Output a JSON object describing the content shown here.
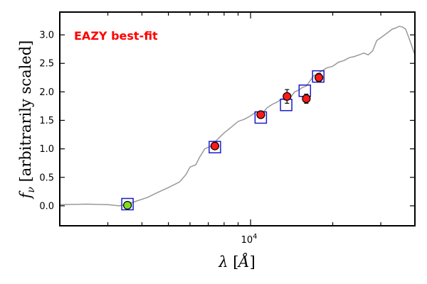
{
  "chart_data": {
    "type": "scatter",
    "annotation": "EAZY best-fit",
    "colors": {
      "annotation": "#ff0000",
      "model": "#999999",
      "model_box": "#1a1acc",
      "detected": "#ff1a1a",
      "upper_point": "#7fdf1f"
    },
    "xlabel": "λ [Å]",
    "ylabel": "fν [arbitrarily scaled]",
    "xscale": "log",
    "xlim": [
      2000,
      40000
    ],
    "ylim": [
      -0.35,
      3.4
    ],
    "yticks": [
      {
        "v": 0.0,
        "label": "0.0"
      },
      {
        "v": 0.5,
        "label": "0.5"
      },
      {
        "v": 1.0,
        "label": "1.0"
      },
      {
        "v": 1.5,
        "label": "1.5"
      },
      {
        "v": 2.0,
        "label": "2.0"
      },
      {
        "v": 2.5,
        "label": "2.5"
      },
      {
        "v": 3.0,
        "label": "3.0"
      }
    ],
    "xtick_label": {
      "base": "10",
      "exp": "4"
    },
    "model_spectrum": {
      "x": [
        2000,
        2500,
        3000,
        3300,
        3500,
        3800,
        4200,
        4500,
        5000,
        5500,
        5800,
        6000,
        6300,
        6500,
        6800,
        7200,
        7500,
        8000,
        8500,
        9000,
        9500,
        10000,
        10500,
        11000,
        11500,
        12000,
        12500,
        13000,
        13500,
        14000,
        14500,
        15000,
        15500,
        16000,
        17000,
        18000,
        19000,
        20000,
        21000,
        22000,
        23000,
        24000,
        25000,
        26000,
        27000,
        28000,
        29000,
        30000,
        31000,
        32000,
        33000,
        34000,
        35000,
        36000,
        37000,
        38000,
        39000,
        40000
      ],
      "y": [
        0.02,
        0.03,
        0.02,
        0.0,
        0.02,
        0.08,
        0.15,
        0.22,
        0.32,
        0.42,
        0.55,
        0.68,
        0.72,
        0.85,
        1.0,
        1.05,
        1.15,
        1.28,
        1.38,
        1.48,
        1.52,
        1.58,
        1.65,
        1.62,
        1.72,
        1.78,
        1.82,
        1.88,
        1.85,
        1.9,
        2.0,
        2.03,
        2.08,
        2.1,
        2.28,
        2.35,
        2.42,
        2.45,
        2.52,
        2.55,
        2.6,
        2.62,
        2.65,
        2.68,
        2.65,
        2.72,
        2.9,
        2.95,
        3.0,
        3.05,
        3.1,
        3.12,
        3.15,
        3.14,
        3.1,
        2.95,
        2.8,
        2.65
      ]
    },
    "model_boxes": [
      {
        "x": 3540,
        "y": 0.03
      },
      {
        "x": 7400,
        "y": 1.03
      },
      {
        "x": 10900,
        "y": 1.55
      },
      {
        "x": 13500,
        "y": 1.77
      },
      {
        "x": 15800,
        "y": 2.02
      },
      {
        "x": 17700,
        "y": 2.27
      }
    ],
    "points": [
      {
        "x": 3540,
        "y": 0.01,
        "err": 0.0,
        "kind": "upper_point"
      },
      {
        "x": 7400,
        "y": 1.05,
        "err": 0.05,
        "kind": "detected"
      },
      {
        "x": 10900,
        "y": 1.6,
        "err": 0.04,
        "kind": "detected"
      },
      {
        "x": 13600,
        "y": 1.92,
        "err": 0.12,
        "kind": "detected"
      },
      {
        "x": 16000,
        "y": 1.88,
        "err": 0.08,
        "kind": "detected"
      },
      {
        "x": 17800,
        "y": 2.25,
        "err": 0.07,
        "kind": "detected"
      }
    ]
  }
}
